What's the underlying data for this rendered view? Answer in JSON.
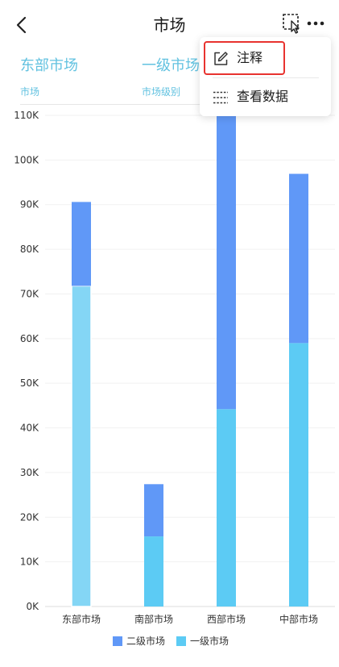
{
  "header": {
    "title": "市场",
    "icons": [
      "back-icon",
      "select-region-icon",
      "more-icon"
    ]
  },
  "summary": [
    {
      "value": "东部市场",
      "label": "市场"
    },
    {
      "value": "一级市场",
      "label": "市场级别"
    }
  ],
  "menu": {
    "items": [
      {
        "label": "注释",
        "icon": "edit-icon"
      },
      {
        "label": "查看数据",
        "icon": "list-icon"
      }
    ],
    "highlight_color": "#e8332f"
  },
  "chart_data": {
    "type": "bar",
    "stacked": true,
    "categories": [
      "东部市场",
      "南部市场",
      "西部市场",
      "中部市场"
    ],
    "series": [
      {
        "name": "一级市场",
        "color": "#5ccbf4",
        "values": [
          71800,
          15700,
          44200,
          59000
        ]
      },
      {
        "name": "二级市场",
        "color": "#6098f7",
        "values": [
          18800,
          11700,
          65800,
          37900
        ]
      }
    ],
    "ylim": [
      0,
      110000
    ],
    "yticks": [
      {
        "value": 0,
        "label": "0K"
      },
      {
        "value": 10000,
        "label": "10K"
      },
      {
        "value": 20000,
        "label": "20K"
      },
      {
        "value": 30000,
        "label": "30K"
      },
      {
        "value": 40000,
        "label": "40K"
      },
      {
        "value": 50000,
        "label": "50K"
      },
      {
        "value": 60000,
        "label": "60K"
      },
      {
        "value": 70000,
        "label": "70K"
      },
      {
        "value": 80000,
        "label": "80K"
      },
      {
        "value": 90000,
        "label": "90K"
      },
      {
        "value": 100000,
        "label": "100K"
      },
      {
        "value": 110000,
        "label": "110K"
      }
    ],
    "selected_category": "东部市场",
    "selected_series": "一级市场",
    "selected_color": "#84d6f5",
    "grid": true,
    "legend_position": "bottom",
    "legend_order": [
      "二级市场",
      "一级市场"
    ]
  }
}
